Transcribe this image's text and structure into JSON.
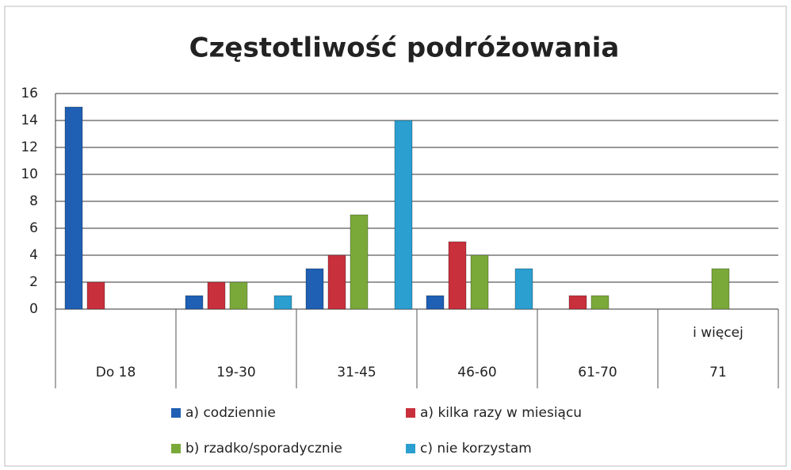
{
  "chart_data": {
    "type": "bar",
    "title": "Częstotliwość podróżowania",
    "categories": [
      "Do 18",
      "19-30",
      "31-45",
      "46-60",
      "61-70",
      [
        "i więcej",
        "71"
      ]
    ],
    "series": [
      {
        "name": "a) codziennie",
        "color": "#1f5fb4",
        "values": [
          15,
          1,
          3,
          1,
          0,
          0
        ]
      },
      {
        "name": "a) kilka razy w miesiącu",
        "color": "#c8303c",
        "values": [
          2,
          2,
          4,
          5,
          1,
          0
        ]
      },
      {
        "name": "b) rzadko/sporadycznie",
        "color": "#7aa93a",
        "values": [
          0,
          2,
          7,
          4,
          1,
          3
        ]
      },
      {
        "name": "c) nie korzystam",
        "color": "#2a9fd0",
        "values": [
          0,
          1,
          14,
          3,
          0,
          0
        ]
      }
    ],
    "ylim": [
      0,
      16
    ],
    "yticks": [
      0,
      2,
      4,
      6,
      8,
      10,
      12,
      14,
      16
    ],
    "grid": true
  }
}
